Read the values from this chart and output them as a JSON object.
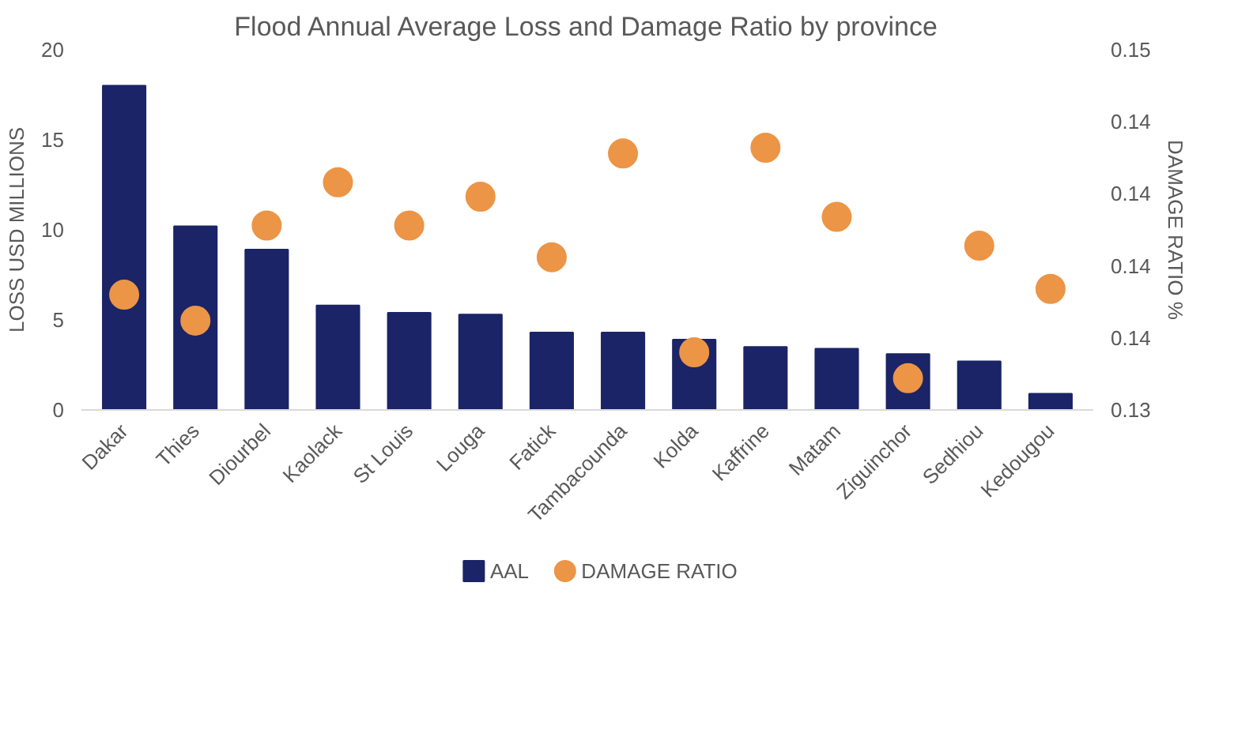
{
  "chart_data": {
    "type": "bar",
    "title": "Flood Annual Average Loss and Damage Ratio by province",
    "ylabel": "LOSS USD MILLIONS",
    "y2label": "DAMAGE RATIO %",
    "categories": [
      "Dakar",
      "Thies",
      "Diourbel",
      "Kaolack",
      "St Louis",
      "Louga",
      "Fatick",
      "Tambacounda",
      "Kolda",
      "Kaffrine",
      "Matam",
      "Ziguinchor",
      "Sedhiou",
      "Kedougou"
    ],
    "series": [
      {
        "name": "AAL",
        "color": "#1b2466",
        "values": [
          18.0,
          10.2,
          8.9,
          5.8,
          5.4,
          5.3,
          4.3,
          4.3,
          3.9,
          3.5,
          3.4,
          3.1,
          2.7,
          0.9
        ]
      },
      {
        "name": "DAMAGE RATIO",
        "type": "scatter",
        "axis": "y2",
        "color": "#ec9546",
        "values": [
          0.1385,
          0.1376,
          0.1409,
          0.1424,
          0.1409,
          0.1419,
          0.1398,
          0.1434,
          0.1365,
          0.1436,
          0.1412,
          0.1356,
          0.1402,
          0.1387
        ]
      }
    ],
    "ylim": [
      0,
      20
    ],
    "yticks": [
      0,
      5,
      10,
      15,
      20
    ],
    "y2lim": [
      0.1345,
      0.147
    ],
    "y2ticks": [
      {
        "value": 0.1345,
        "label": "0.13"
      },
      {
        "value": 0.137,
        "label": "0.14"
      },
      {
        "value": 0.1395,
        "label": "0.14"
      },
      {
        "value": 0.142,
        "label": "0.14"
      },
      {
        "value": 0.1445,
        "label": "0.14"
      },
      {
        "value": 0.147,
        "label": "0.15"
      }
    ],
    "marker": "circle",
    "legend": "bottom"
  }
}
